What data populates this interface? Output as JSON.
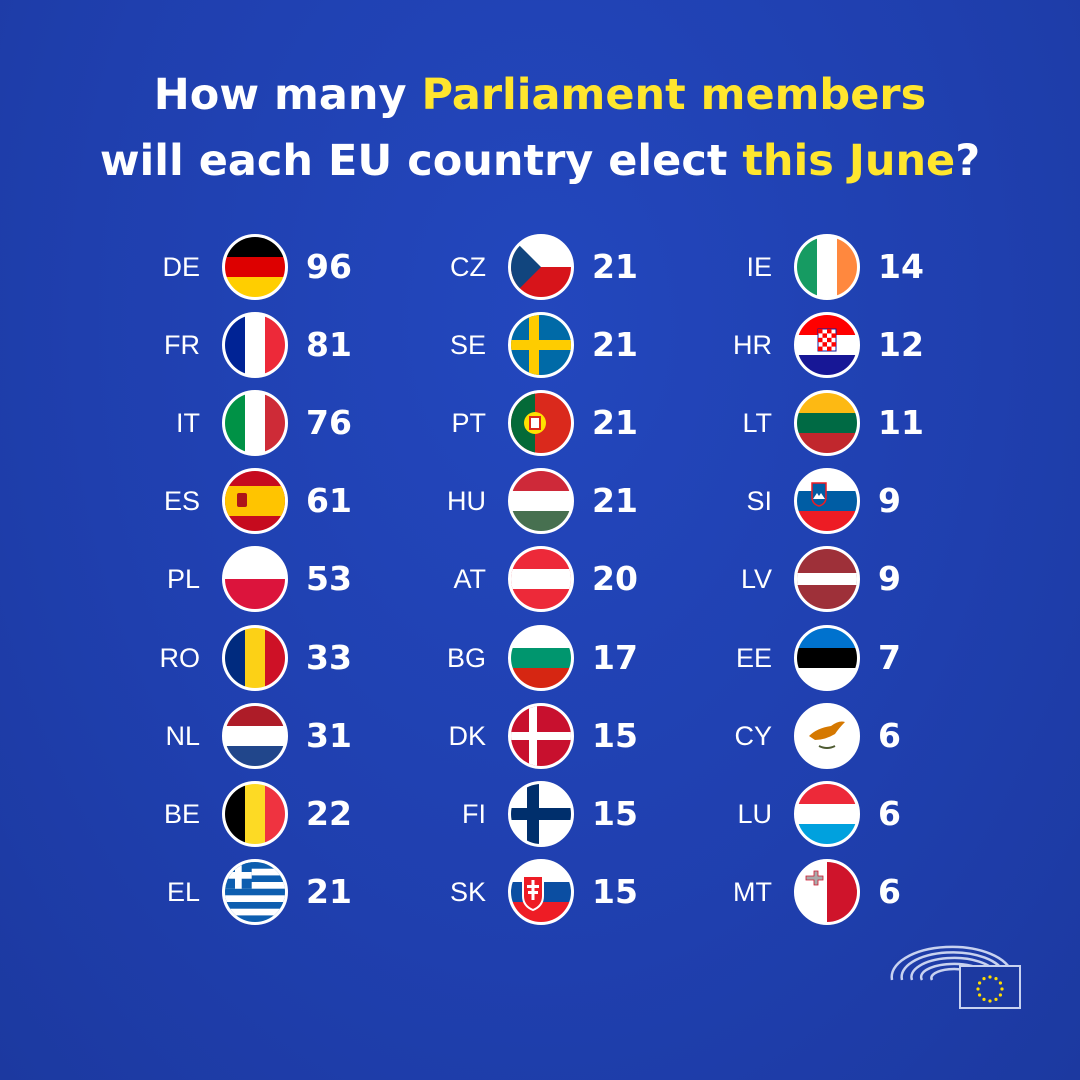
{
  "title": {
    "lines": [
      [
        {
          "text": "How many ",
          "highlight": false
        },
        {
          "text": "Parliament members",
          "highlight": true
        }
      ],
      [
        {
          "text": "will each EU country elect ",
          "highlight": false
        },
        {
          "text": "this June",
          "highlight": true
        },
        {
          "text": "?",
          "highlight": false
        }
      ]
    ],
    "color": "#ffffff",
    "highlight_color": "#ffe62e"
  },
  "countries": [
    {
      "code": "DE",
      "seats": 96
    },
    {
      "code": "FR",
      "seats": 81
    },
    {
      "code": "IT",
      "seats": 76
    },
    {
      "code": "ES",
      "seats": 61
    },
    {
      "code": "PL",
      "seats": 53
    },
    {
      "code": "RO",
      "seats": 33
    },
    {
      "code": "NL",
      "seats": 31
    },
    {
      "code": "BE",
      "seats": 22
    },
    {
      "code": "EL",
      "seats": 21
    },
    {
      "code": "CZ",
      "seats": 21
    },
    {
      "code": "SE",
      "seats": 21
    },
    {
      "code": "PT",
      "seats": 21
    },
    {
      "code": "HU",
      "seats": 21
    },
    {
      "code": "AT",
      "seats": 20
    },
    {
      "code": "BG",
      "seats": 17
    },
    {
      "code": "DK",
      "seats": 15
    },
    {
      "code": "FI",
      "seats": 15
    },
    {
      "code": "SK",
      "seats": 15
    },
    {
      "code": "IE",
      "seats": 14
    },
    {
      "code": "HR",
      "seats": 12
    },
    {
      "code": "LT",
      "seats": 11
    },
    {
      "code": "SI",
      "seats": 9
    },
    {
      "code": "LV",
      "seats": 9
    },
    {
      "code": "EE",
      "seats": 7
    },
    {
      "code": "CY",
      "seats": 6
    },
    {
      "code": "LU",
      "seats": 6
    },
    {
      "code": "MT",
      "seats": 6
    }
  ]
}
